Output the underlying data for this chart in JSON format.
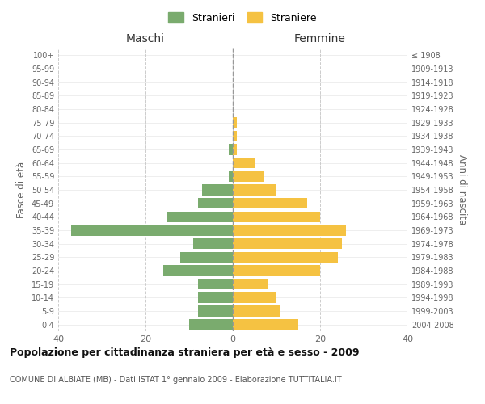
{
  "age_groups": [
    "0-4",
    "5-9",
    "10-14",
    "15-19",
    "20-24",
    "25-29",
    "30-34",
    "35-39",
    "40-44",
    "45-49",
    "50-54",
    "55-59",
    "60-64",
    "65-69",
    "70-74",
    "75-79",
    "80-84",
    "85-89",
    "90-94",
    "95-99",
    "100+"
  ],
  "birth_years": [
    "2004-2008",
    "1999-2003",
    "1994-1998",
    "1989-1993",
    "1984-1988",
    "1979-1983",
    "1974-1978",
    "1969-1973",
    "1964-1968",
    "1959-1963",
    "1954-1958",
    "1949-1953",
    "1944-1948",
    "1939-1943",
    "1934-1938",
    "1929-1933",
    "1924-1928",
    "1919-1923",
    "1914-1918",
    "1909-1913",
    "≤ 1908"
  ],
  "maschi": [
    10,
    8,
    8,
    8,
    16,
    12,
    9,
    37,
    15,
    8,
    7,
    1,
    0,
    1,
    0,
    0,
    0,
    0,
    0,
    0,
    0
  ],
  "femmine": [
    15,
    11,
    10,
    8,
    20,
    24,
    25,
    26,
    20,
    17,
    10,
    7,
    5,
    1,
    1,
    1,
    0,
    0,
    0,
    0,
    0
  ],
  "color_maschi": "#7aab6e",
  "color_femmine": "#f5c242",
  "title": "Popolazione per cittadinanza straniera per età e sesso - 2009",
  "subtitle": "COMUNE DI ALBIATE (MB) - Dati ISTAT 1° gennaio 2009 - Elaborazione TUTTITALIA.IT",
  "ylabel_left": "Fasce di età",
  "ylabel_right": "Anni di nascita",
  "xlabel_left": "Maschi",
  "xlabel_right": "Femmine",
  "legend_stranieri": "Stranieri",
  "legend_straniere": "Straniere",
  "xlim": 40,
  "background_color": "#ffffff",
  "grid_color": "#cccccc"
}
